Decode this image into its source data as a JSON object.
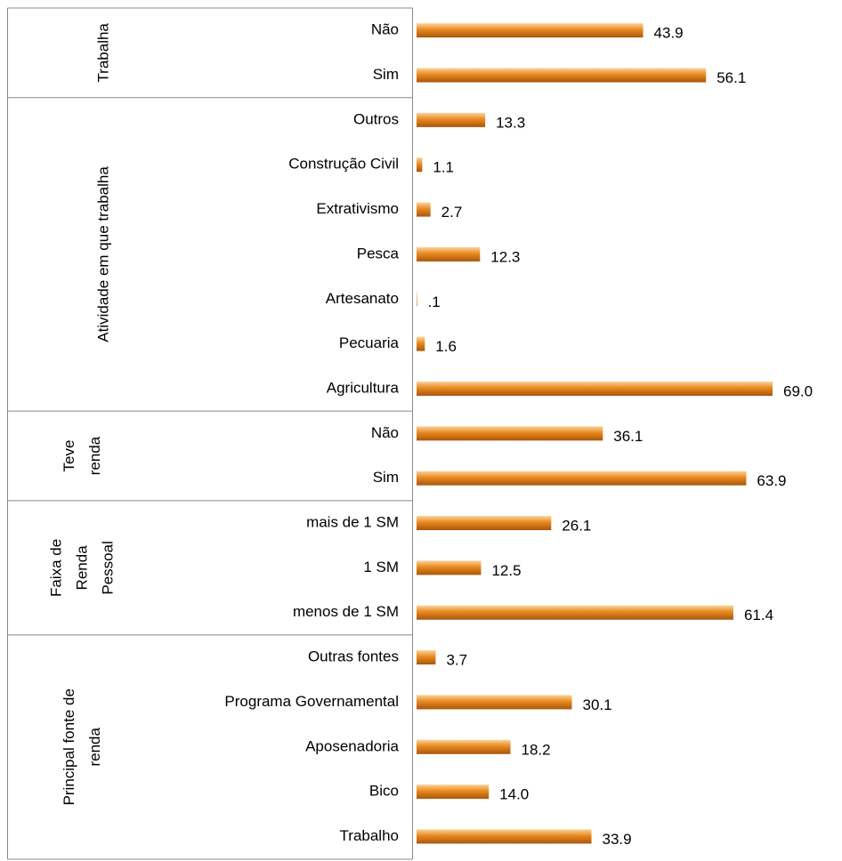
{
  "chart_data": {
    "type": "bar",
    "orientation": "horizontal",
    "color": "#e8891f",
    "groups": [
      {
        "label_lines": [
          "Trabalha"
        ],
        "categories": [
          "Não",
          "Sim"
        ],
        "values": [
          43.9,
          56.1
        ],
        "value_labels": [
          "43.9",
          "56.1"
        ]
      },
      {
        "label_lines": [
          "Atividade em que trabalha"
        ],
        "categories": [
          "Outros",
          "Construção Civil",
          "Extrativismo",
          "Pesca",
          "Artesanato",
          "Pecuaria",
          "Agricultura"
        ],
        "values": [
          13.3,
          1.1,
          2.7,
          12.3,
          0.1,
          1.6,
          69.0
        ],
        "value_labels": [
          "13.3",
          "1.1",
          "2.7",
          "12.3",
          ".1",
          "1.6",
          "69.0"
        ]
      },
      {
        "label_lines": [
          "Teve",
          "renda"
        ],
        "categories": [
          "Não",
          "Sim"
        ],
        "values": [
          36.1,
          63.9
        ],
        "value_labels": [
          "36.1",
          "63.9"
        ]
      },
      {
        "label_lines": [
          "Faixa de",
          "Renda",
          "Pessoal"
        ],
        "categories": [
          "mais de 1 SM",
          "1 SM",
          "menos de 1 SM"
        ],
        "values": [
          26.1,
          12.5,
          61.4
        ],
        "value_labels": [
          "26.1",
          "12.5",
          "61.4"
        ]
      },
      {
        "label_lines": [
          "Principal fonte de",
          "renda"
        ],
        "categories": [
          "Outras fontes",
          "Programa Governamental",
          "Aposenadoria",
          "Bico",
          "Trabalho"
        ],
        "values": [
          3.7,
          30.1,
          18.2,
          14.0,
          33.9
        ],
        "value_labels": [
          "3.7",
          "30.1",
          "18.2",
          "14.0",
          "33.9"
        ]
      }
    ]
  }
}
